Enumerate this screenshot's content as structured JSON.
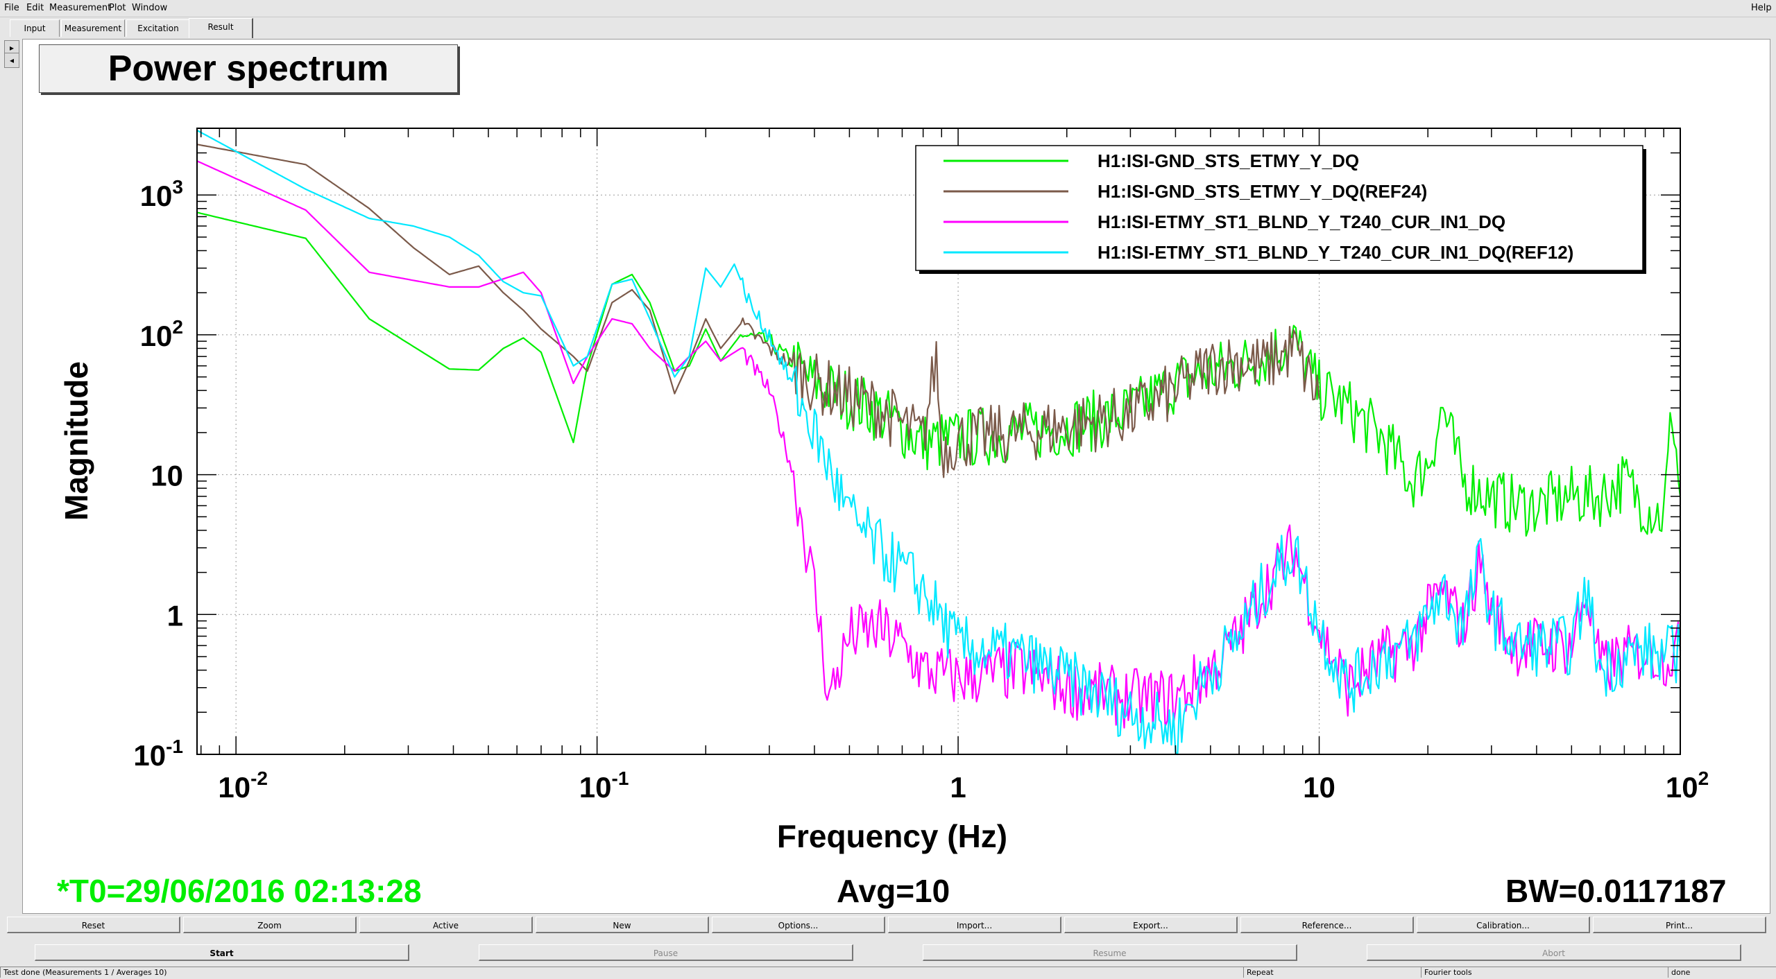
{
  "menu": {
    "file": "File",
    "edit": "Edit",
    "measurement": "Measurement",
    "plot": "Plot",
    "window": "Window",
    "help": "Help"
  },
  "tabs": {
    "input": "Input",
    "measurement": "Measurement",
    "excitation": "Excitation",
    "result": "Result"
  },
  "plot_title": "Power spectrum",
  "chart_data": {
    "type": "line",
    "title": "Power spectrum",
    "xlabel": "Frequency (Hz)",
    "ylabel": "Magnitude",
    "x_scale": "log",
    "y_scale": "log",
    "xlim": [
      0.0078,
      100
    ],
    "ylim": [
      0.1,
      3000
    ],
    "grid": true,
    "legend_position": "top-right",
    "x_ticks": [
      {
        "value": 0.01,
        "base": "10",
        "exp": "-2"
      },
      {
        "value": 0.1,
        "base": "10",
        "exp": "-1"
      },
      {
        "value": 1,
        "base": "1",
        "exp": ""
      },
      {
        "value": 10,
        "base": "10",
        "exp": ""
      },
      {
        "value": 100,
        "base": "10",
        "exp": "2"
      }
    ],
    "y_ticks": [
      {
        "value": 1000,
        "base": "10",
        "exp": "3"
      },
      {
        "value": 100,
        "base": "10",
        "exp": "2"
      },
      {
        "value": 10,
        "base": "10",
        "exp": ""
      },
      {
        "value": 1,
        "base": "1",
        "exp": ""
      },
      {
        "value": 0.1,
        "base": "10",
        "exp": "-1"
      }
    ],
    "series": [
      {
        "name": "H1:ISI-GND_STS_ETMY_Y_DQ",
        "color": "#00ee00",
        "points": [
          [
            0.0078,
            750
          ],
          [
            0.0156,
            490
          ],
          [
            0.0234,
            130
          ],
          [
            0.039,
            57
          ],
          [
            0.047,
            56
          ],
          [
            0.055,
            80
          ],
          [
            0.0625,
            95
          ],
          [
            0.07,
            75
          ],
          [
            0.086,
            17
          ],
          [
            0.094,
            60
          ],
          [
            0.11,
            230
          ],
          [
            0.125,
            270
          ],
          [
            0.14,
            170
          ],
          [
            0.164,
            55
          ],
          [
            0.18,
            60
          ],
          [
            0.2,
            110
          ],
          [
            0.22,
            65
          ],
          [
            0.25,
            100
          ],
          [
            0.3,
            90
          ],
          [
            0.4,
            45
          ],
          [
            0.6,
            28
          ],
          [
            0.8,
            17
          ],
          [
            1.0,
            18
          ],
          [
            1.5,
            20
          ],
          [
            2.0,
            22
          ],
          [
            3.0,
            28
          ],
          [
            4.0,
            45
          ],
          [
            5.0,
            55
          ],
          [
            6.0,
            60
          ],
          [
            7.0,
            70
          ],
          [
            8.5,
            90
          ],
          [
            10,
            40
          ],
          [
            12,
            30
          ],
          [
            15,
            18
          ],
          [
            18,
            9
          ],
          [
            20,
            12
          ],
          [
            22,
            30
          ],
          [
            25,
            9
          ],
          [
            30,
            7
          ],
          [
            35,
            6
          ],
          [
            40,
            6
          ],
          [
            50,
            7
          ],
          [
            60,
            7
          ],
          [
            70,
            9
          ],
          [
            80,
            6
          ],
          [
            90,
            5
          ],
          [
            95,
            30
          ],
          [
            100,
            7
          ]
        ]
      },
      {
        "name": "H1:ISI-GND_STS_ETMY_Y_DQ(REF24)",
        "color": "#7b5a4a",
        "points": [
          [
            0.0078,
            2300
          ],
          [
            0.0156,
            1650
          ],
          [
            0.0234,
            800
          ],
          [
            0.031,
            420
          ],
          [
            0.039,
            270
          ],
          [
            0.047,
            310
          ],
          [
            0.055,
            200
          ],
          [
            0.0625,
            150
          ],
          [
            0.07,
            110
          ],
          [
            0.086,
            70
          ],
          [
            0.094,
            55
          ],
          [
            0.11,
            170
          ],
          [
            0.125,
            210
          ],
          [
            0.14,
            150
          ],
          [
            0.164,
            38
          ],
          [
            0.18,
            65
          ],
          [
            0.2,
            130
          ],
          [
            0.22,
            80
          ],
          [
            0.25,
            120
          ],
          [
            0.3,
            80
          ],
          [
            0.4,
            45
          ],
          [
            0.6,
            30
          ],
          [
            0.8,
            18
          ],
          [
            0.87,
            70
          ],
          [
            0.9,
            15
          ],
          [
            1.0,
            18
          ],
          [
            1.5,
            20
          ],
          [
            2.0,
            22
          ],
          [
            3.0,
            27
          ],
          [
            4.0,
            40
          ],
          [
            5.0,
            60
          ],
          [
            6.0,
            65
          ],
          [
            7.0,
            60
          ],
          [
            8.5,
            80
          ],
          [
            10,
            35
          ]
        ]
      },
      {
        "name": "H1:ISI-ETMY_ST1_BLND_Y_T240_CUR_IN1_DQ",
        "color": "#ff00ff",
        "points": [
          [
            0.0078,
            1750
          ],
          [
            0.0156,
            780
          ],
          [
            0.0234,
            280
          ],
          [
            0.039,
            220
          ],
          [
            0.047,
            220
          ],
          [
            0.0625,
            280
          ],
          [
            0.07,
            200
          ],
          [
            0.086,
            45
          ],
          [
            0.094,
            70
          ],
          [
            0.11,
            130
          ],
          [
            0.125,
            120
          ],
          [
            0.14,
            80
          ],
          [
            0.164,
            55
          ],
          [
            0.18,
            70
          ],
          [
            0.2,
            90
          ],
          [
            0.22,
            65
          ],
          [
            0.25,
            80
          ],
          [
            0.3,
            40
          ],
          [
            0.35,
            10
          ],
          [
            0.4,
            1.5
          ],
          [
            0.44,
            0.25
          ],
          [
            0.5,
            0.7
          ],
          [
            0.6,
            0.8
          ],
          [
            0.7,
            0.6
          ],
          [
            0.8,
            0.4
          ],
          [
            1.0,
            0.35
          ],
          [
            1.5,
            0.4
          ],
          [
            2.0,
            0.3
          ],
          [
            3.0,
            0.25
          ],
          [
            4.0,
            0.25
          ],
          [
            5.0,
            0.4
          ],
          [
            6.0,
            0.7
          ],
          [
            7.0,
            1.5
          ],
          [
            8.5,
            3
          ],
          [
            10,
            0.8
          ],
          [
            12,
            0.3
          ],
          [
            15,
            0.5
          ],
          [
            18,
            0.6
          ],
          [
            20,
            1
          ],
          [
            22,
            1.5
          ],
          [
            25,
            0.8
          ],
          [
            28,
            2.5
          ],
          [
            30,
            1
          ],
          [
            35,
            0.6
          ],
          [
            40,
            0.6
          ],
          [
            50,
            0.6
          ],
          [
            55,
            1.5
          ],
          [
            60,
            0.4
          ],
          [
            70,
            0.5
          ],
          [
            80,
            0.55
          ],
          [
            90,
            0.5
          ],
          [
            100,
            0.55
          ]
        ]
      },
      {
        "name": "H1:ISI-ETMY_ST1_BLND_Y_T240_CUR_IN1_DQ(REF12)",
        "color": "#00e8ff",
        "points": [
          [
            0.0078,
            2900
          ],
          [
            0.0156,
            1100
          ],
          [
            0.0234,
            680
          ],
          [
            0.031,
            600
          ],
          [
            0.039,
            500
          ],
          [
            0.047,
            370
          ],
          [
            0.055,
            240
          ],
          [
            0.0625,
            200
          ],
          [
            0.07,
            190
          ],
          [
            0.086,
            60
          ],
          [
            0.094,
            70
          ],
          [
            0.11,
            230
          ],
          [
            0.125,
            250
          ],
          [
            0.14,
            130
          ],
          [
            0.164,
            50
          ],
          [
            0.18,
            70
          ],
          [
            0.2,
            300
          ],
          [
            0.22,
            220
          ],
          [
            0.24,
            320
          ],
          [
            0.27,
            150
          ],
          [
            0.3,
            100
          ],
          [
            0.4,
            20
          ],
          [
            0.5,
            5
          ],
          [
            0.6,
            3
          ],
          [
            0.8,
            1.5
          ],
          [
            1.0,
            0.6
          ],
          [
            1.5,
            0.5
          ],
          [
            2.0,
            0.35
          ],
          [
            3.0,
            0.2
          ],
          [
            4.0,
            0.15
          ],
          [
            5.0,
            0.4
          ],
          [
            6.0,
            0.7
          ],
          [
            7.0,
            1.5
          ],
          [
            8.5,
            3
          ],
          [
            10,
            0.8
          ],
          [
            12,
            0.3
          ],
          [
            15,
            0.5
          ],
          [
            18,
            0.6
          ],
          [
            20,
            1
          ],
          [
            22,
            1.5
          ],
          [
            25,
            0.8
          ],
          [
            28,
            2.5
          ],
          [
            30,
            1
          ],
          [
            35,
            0.6
          ],
          [
            40,
            0.6
          ],
          [
            50,
            0.6
          ],
          [
            55,
            1.5
          ],
          [
            60,
            0.4
          ],
          [
            70,
            0.5
          ],
          [
            80,
            0.55
          ],
          [
            90,
            0.5
          ],
          [
            100,
            0.55
          ]
        ]
      }
    ]
  },
  "footer": {
    "t0": "*T0=29/06/2016 02:13:28",
    "avg": "Avg=10",
    "bw": "BW=0.0117187",
    "t0_color": "#00ee00"
  },
  "buttons": {
    "reset": "Reset",
    "zoom": "Zoom",
    "active": "Active",
    "new": "New",
    "options": "Options...",
    "import": "Import...",
    "export": "Export...",
    "reference": "Reference...",
    "calibration": "Calibration...",
    "print": "Print..."
  },
  "controls": {
    "start": "Start",
    "pause": "Pause",
    "resume": "Resume",
    "abort": "Abort"
  },
  "status": {
    "message": "Test done (Measurements 1 / Averages 10)",
    "repeat": "Repeat",
    "fourier": "Fourier tools",
    "state": "done"
  }
}
